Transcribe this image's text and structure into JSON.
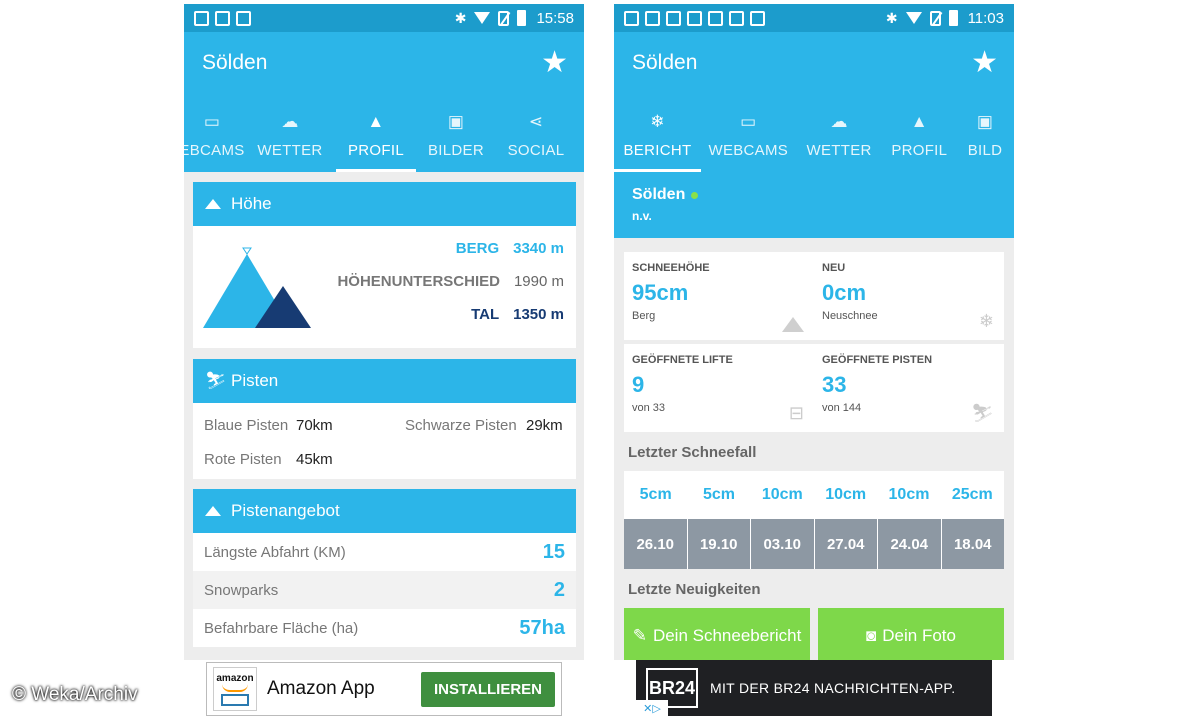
{
  "copyright": "© Weka/Archiv",
  "left": {
    "status": {
      "time": "15:58"
    },
    "appbar": {
      "title": "Sölden"
    },
    "tabs": [
      {
        "label": "EBCAMS",
        "icon": "video-icon"
      },
      {
        "label": "WETTER",
        "icon": "weather-icon"
      },
      {
        "label": "PROFIL",
        "icon": "mountain-icon"
      },
      {
        "label": "BILDER",
        "icon": "image-icon"
      },
      {
        "label": "SOCIAL",
        "icon": "share-icon"
      }
    ],
    "hoehe": {
      "title": "Höhe",
      "berg_label": "BERG",
      "berg_value": "3340 m",
      "diff_label": "HÖHENUNTERSCHIED",
      "diff_value": "1990 m",
      "tal_label": "TAL",
      "tal_value": "1350 m"
    },
    "pisten": {
      "title": "Pisten",
      "blau_label": "Blaue Pisten",
      "blau_value": "70km",
      "schwarz_label": "Schwarze Pisten",
      "schwarz_value": "29km",
      "rot_label": "Rote Pisten",
      "rot_value": "45km"
    },
    "angebot": {
      "title": "Pistenangebot",
      "rows": [
        {
          "label": "Längste Abfahrt (KM)",
          "value": "15"
        },
        {
          "label": "Snowparks",
          "value": "2"
        },
        {
          "label": "Befahrbare Fläche (ha)",
          "value": "57ha"
        }
      ]
    },
    "ad": {
      "brand": "amazon",
      "title": "Amazon App",
      "button": "INSTALLIEREN"
    }
  },
  "right": {
    "status": {
      "time": "11:03"
    },
    "appbar": {
      "title": "Sölden"
    },
    "tabs": [
      {
        "label": "BERICHT",
        "icon": "snowflake-icon"
      },
      {
        "label": "WEBCAMS",
        "icon": "video-icon"
      },
      {
        "label": "WETTER",
        "icon": "weather-icon"
      },
      {
        "label": "PROFIL",
        "icon": "mountain-icon"
      },
      {
        "label": "BILD",
        "icon": "image-icon"
      }
    ],
    "resort": {
      "name": "Sölden",
      "sub": "n.v."
    },
    "stats": [
      {
        "label": "SCHNEEHÖHE",
        "value": "95cm",
        "sub": "Berg"
      },
      {
        "label": "NEU",
        "value": "0cm",
        "sub": "Neuschnee"
      },
      {
        "label": "GEÖFFNETE LIFTE",
        "value": "9",
        "sub": "von 33"
      },
      {
        "label": "GEÖFFNETE PISTEN",
        "value": "33",
        "sub": "von 144"
      }
    ],
    "snowfall": {
      "title": "Letzter Schneefall",
      "amounts": [
        "5cm",
        "5cm",
        "10cm",
        "10cm",
        "10cm",
        "25cm"
      ],
      "dates": [
        "26.10",
        "19.10",
        "03.10",
        "27.04",
        "24.04",
        "18.04"
      ]
    },
    "news": {
      "title": "Letzte Neuigkeiten"
    },
    "buttons": {
      "report": "Dein Schneebericht",
      "photo": "Dein Foto"
    },
    "ad": {
      "logo": "BR24",
      "text": "MIT DER BR24 NACHRICHTEN-APP."
    }
  },
  "colors": {
    "primary": "#2cb5e8",
    "status": "#1c9ccc",
    "dark": "#173b73",
    "green": "#7ed84a",
    "date_bg": "#8d98a3"
  }
}
